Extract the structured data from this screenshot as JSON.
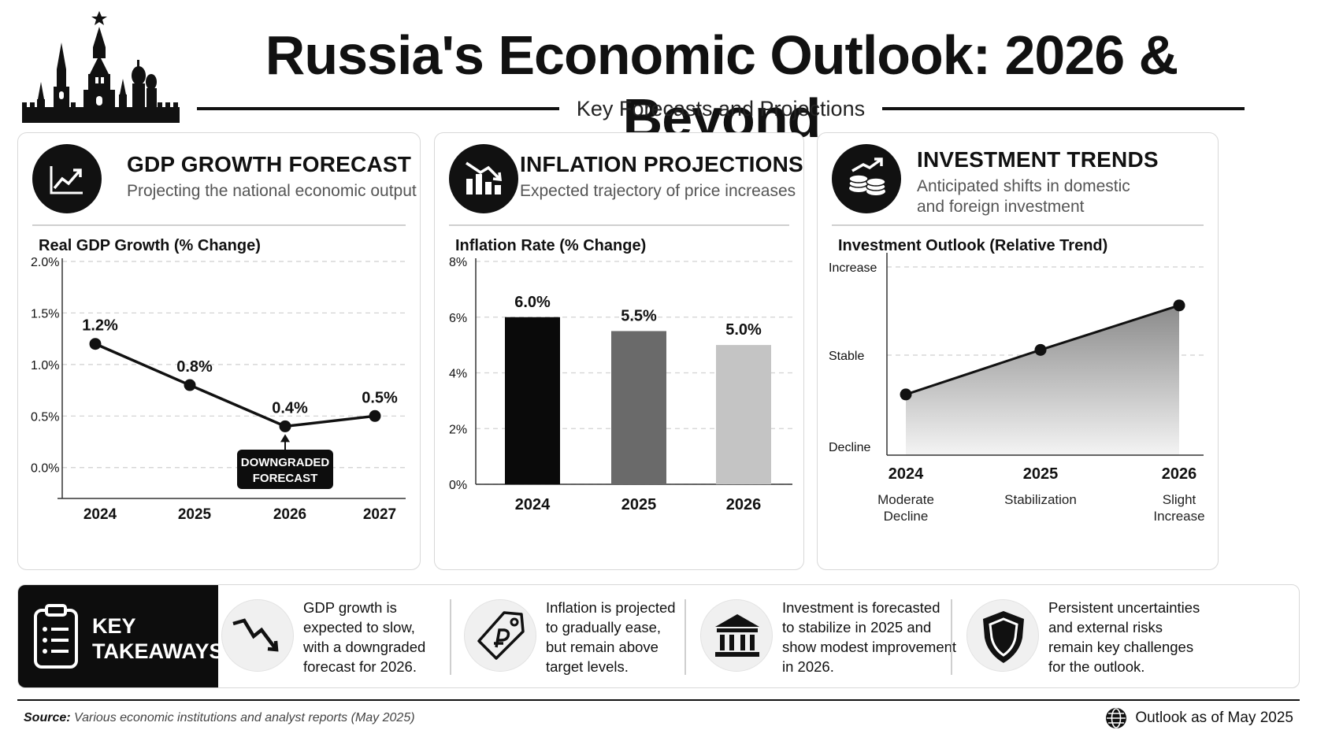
{
  "header": {
    "title": "Russia's Economic Outlook: 2026 & Beyond",
    "subtitle": "Key Forecasts and Projections",
    "logo_icon": "kremlin-skyline-icon"
  },
  "panels": {
    "gdp": {
      "icon": "chart-trend-up-icon",
      "title": "GDP GROWTH FORECAST",
      "subtitle": "Projecting the national economic output",
      "chart_label": "Real GDP Growth (% Change)"
    },
    "inflation": {
      "icon": "bar-chart-down-icon",
      "title": "INFLATION PROJECTIONS",
      "subtitle": "Expected trajectory of price increases",
      "chart_label": "Inflation Rate (% Change)"
    },
    "investment": {
      "icon": "coins-growth-icon",
      "title": "INVESTMENT TRENDS",
      "subtitle_line1": "Anticipated shifts in domestic",
      "subtitle_line2": "and foreign investment",
      "chart_label": "Investment Outlook (Relative Trend)"
    }
  },
  "chart_data": [
    {
      "id": "gdp",
      "type": "line",
      "title": "Real GDP Growth (% Change)",
      "x": [
        "2024",
        "2025",
        "2026",
        "2027"
      ],
      "series": [
        {
          "values": [
            1.2,
            0.8,
            0.4,
            0.5
          ]
        }
      ],
      "data_labels": [
        "1.2%",
        "0.8%",
        "0.4%",
        "0.5%"
      ],
      "y_ticks": [
        "2.0%",
        "1.5%",
        "1.0%",
        "0.5%",
        "0.0%"
      ],
      "ylim": [
        -0.3,
        2.0
      ],
      "grid": true,
      "annotation": {
        "x": "2026",
        "line1": "DOWNGRADED",
        "line2": "FORECAST"
      }
    },
    {
      "id": "inflation",
      "type": "bar",
      "title": "Inflation Rate (% Change)",
      "categories": [
        "2024",
        "2025",
        "2026"
      ],
      "values": [
        6.0,
        5.5,
        5.0
      ],
      "data_labels": [
        "6.0%",
        "5.5%",
        "5.0%"
      ],
      "bar_colors": [
        "#0a0a0a",
        "#6a6a6a",
        "#c4c4c4"
      ],
      "y_ticks": [
        "8%",
        "6%",
        "4%",
        "2%",
        "0%"
      ],
      "ylim": [
        0,
        8
      ],
      "grid": true
    },
    {
      "id": "investment",
      "type": "area",
      "title": "Investment Outlook (Relative Trend)",
      "categories": [
        "2024",
        "2025",
        "2026"
      ],
      "category_notes": [
        [
          "Moderate",
          "Decline"
        ],
        [
          "Stabilization"
        ],
        [
          "Slight",
          "Increase"
        ]
      ],
      "y_levels": [
        "Increase",
        "Stable",
        "Decline"
      ],
      "values": [
        0.3,
        0.52,
        0.74
      ],
      "ylim": [
        0,
        1
      ],
      "grid": true
    }
  ],
  "takeaways": {
    "heading_line1": "KEY",
    "heading_line2": "TAKEAWAYS",
    "heading_icon": "clipboard-list-icon",
    "items": [
      {
        "icon": "trend-down-arrow-icon",
        "lines": [
          "GDP growth is",
          "expected to slow,",
          "with a downgraded",
          "forecast for 2026."
        ]
      },
      {
        "icon": "ruble-price-tag-icon",
        "lines": [
          "Inflation is projected",
          "to gradually ease,",
          "but remain above",
          "target levels."
        ]
      },
      {
        "icon": "bank-building-icon",
        "lines": [
          "Investment is forecasted",
          "to stabilize in 2025 and",
          "show modest improvement",
          "in 2026."
        ]
      },
      {
        "icon": "shield-icon",
        "lines": [
          "Persistent uncertainties",
          "and external risks",
          "remain key challenges",
          "for the outlook."
        ]
      }
    ]
  },
  "footer": {
    "source_label": "Source:",
    "source_text": "Various economic institutions and analyst reports (May 2025)",
    "asof_icon": "globe-icon",
    "asof_text": "Outlook as of May 2025"
  }
}
